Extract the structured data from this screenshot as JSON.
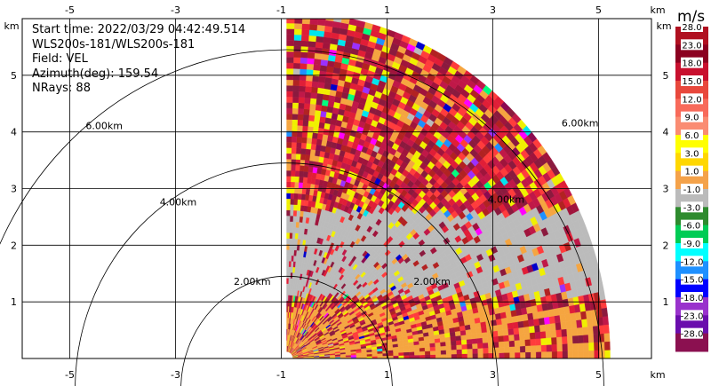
{
  "chart_data": {
    "type": "heatmap",
    "title_lines": {
      "start_time": "Start time: 2022/03/29 04:42:49.514",
      "instrument": "WLS200s-181/WLS200s-181",
      "field": "Field: VEL",
      "azimuth": "Azimuth(deg): 159.54",
      "nrays": "NRays: 88"
    },
    "x_unit": "km",
    "y_unit": "km",
    "x_ticks": [
      -5,
      -3,
      -1,
      1,
      3,
      5
    ],
    "y_ticks": [
      1,
      2,
      3,
      4,
      5
    ],
    "xlim": [
      -5.9,
      6.0
    ],
    "ylim": [
      0,
      6.0
    ],
    "range_rings": [
      {
        "radius_km": 2,
        "label": "2.00km"
      },
      {
        "radius_km": 4,
        "label": "4.00km"
      },
      {
        "radius_km": 6,
        "label": "6.00km"
      }
    ],
    "sector_labels": [
      "2.00km",
      "4.00km",
      "6.00km"
    ],
    "colorbar": {
      "unit": "m/s",
      "labels": [
        "28.0",
        "23.0",
        "18.0",
        "15.0",
        "12.0",
        "9.0",
        "6.0",
        "3.0",
        "1.0",
        "-1.0",
        "-3.0",
        "-6.0",
        "-9.0",
        "-12.0",
        "-15.0",
        "-18.0",
        "-23.0",
        "-28.0"
      ],
      "colors": [
        "#b01020",
        "#8b0020",
        "#c8102e",
        "#e8483c",
        "#f86a5a",
        "#fa8c72",
        "#ffff00",
        "#ffd700",
        "#f4a24a",
        "#bbbbbb",
        "#2e8b2e",
        "#00cc55",
        "#00ffff",
        "#1e90ff",
        "#0000ff",
        "#9932cc",
        "#6a0dad",
        "#8b1050"
      ]
    },
    "field_palette": [
      "#a0143c",
      "#8b1a3e",
      "#c01848",
      "#e01e37",
      "#b22222",
      "#ff3c3c",
      "#f0f000",
      "#f5a540",
      "#00ff7f",
      "#00e5ee",
      "#1e90ff",
      "#0000cd",
      "#9b30ff",
      "#ff00ff",
      "#8b0a50",
      "#bbbbbb"
    ]
  }
}
